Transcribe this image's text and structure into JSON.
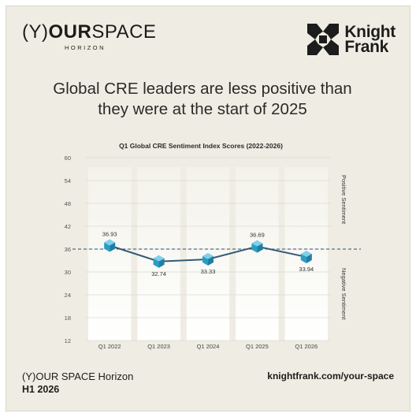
{
  "brand": {
    "open_paren": "(",
    "y": "Y",
    "close_paren": ")",
    "your": "OUR",
    "space": "SPACE",
    "sub": "HORIZON"
  },
  "knight_frank": {
    "line1": "Knight",
    "line2": "Frank"
  },
  "headline": {
    "line1": "Global CRE leaders are less positive than",
    "line2": "they were at the start of 2025"
  },
  "chart_data": {
    "type": "line",
    "title": "Q1 Global CRE Sentiment Index Scores (2022-2026)",
    "categories": [
      "Q1 2022",
      "Q1 2023",
      "Q1 2024",
      "Q1 2025",
      "Q1 2026"
    ],
    "values": [
      36.93,
      32.74,
      33.33,
      36.69,
      33.94
    ],
    "value_labels": [
      "36.93",
      "32.74",
      "33.33",
      "36.69",
      "33.94"
    ],
    "ylim": [
      12,
      60
    ],
    "yticks": [
      12,
      18,
      24,
      30,
      36,
      42,
      48,
      54,
      60
    ],
    "reference_line": 36,
    "right_labels": {
      "upper": "Positive Sentiment",
      "lower": "Negative Sentiment"
    },
    "colors": {
      "line": "#355a75",
      "marker": "#2a9dc4",
      "marker_top": "#7fd0ea",
      "ref": "#2c4f6e",
      "band": "#ffffff"
    }
  },
  "footer": {
    "title": "(Y)OUR SPACE Horizon",
    "edition": "H1 2026",
    "url": "knightfrank.com/your-space"
  }
}
